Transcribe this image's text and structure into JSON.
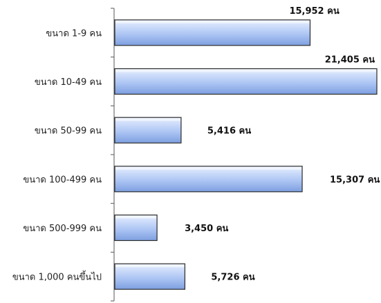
{
  "chart_data": {
    "type": "bar",
    "orientation": "horizontal",
    "categories": [
      "ขนาด 1-9 คน",
      "ขนาด 10-49 คน",
      "ขนาด 50-99 คน",
      "ขนาด 100-499 คน",
      "ขนาด 500-999 คน",
      "ขนาด 1,000 คนขึ้นไป"
    ],
    "values": [
      15952,
      21405,
      5416,
      15307,
      3450,
      5726
    ],
    "value_labels": [
      "15,952 คน",
      "21,405 คน",
      "5,416 คน",
      "15,307 คน",
      "3,450 คน",
      "5,726 คน"
    ],
    "xlim": [
      0,
      21405
    ],
    "grid": false,
    "legend": "none",
    "colors": {
      "bar_light": "#e7efff",
      "bar_mid": "#aec6f4",
      "bar_dark": "#7d9fe0",
      "bar_border": "#2b2b2b",
      "axis": "#555555"
    }
  }
}
